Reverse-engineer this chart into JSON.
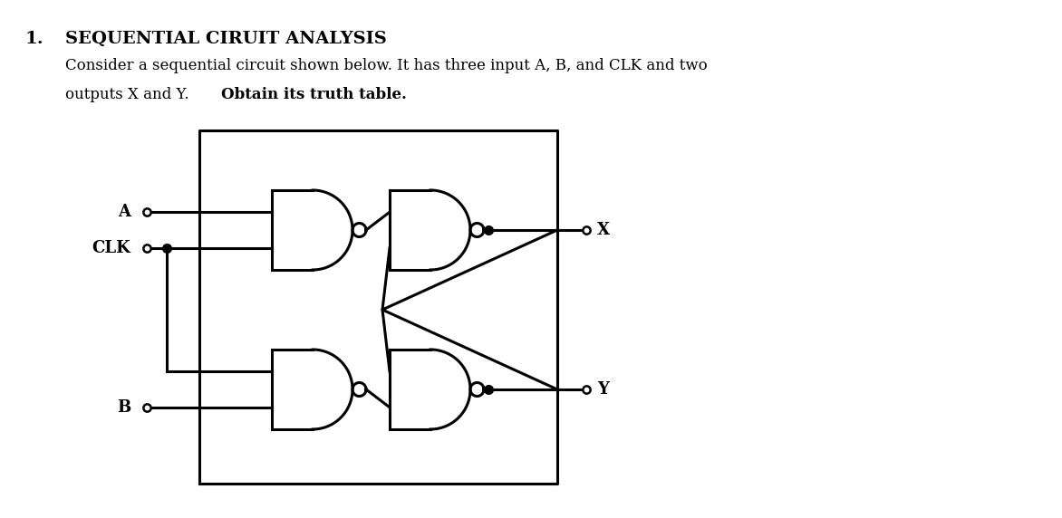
{
  "title_number": "1.",
  "title_text": "SEQUENTIAL CIRUIT ANALYSIS",
  "body_text_line1": "Consider a sequential circuit shown below. It has three input A, B, and CLK and two",
  "body_text_line2_normal": "outputs X and Y. ",
  "body_text_line2_bold": "Obtain its truth table.",
  "label_A": "A",
  "label_CLK": "CLK",
  "label_B": "B",
  "label_X": "X",
  "label_Y": "Y",
  "line_color": "#000000",
  "bg_color": "#ffffff",
  "line_width": 2.2,
  "fig_width": 11.72,
  "fig_height": 5.72
}
